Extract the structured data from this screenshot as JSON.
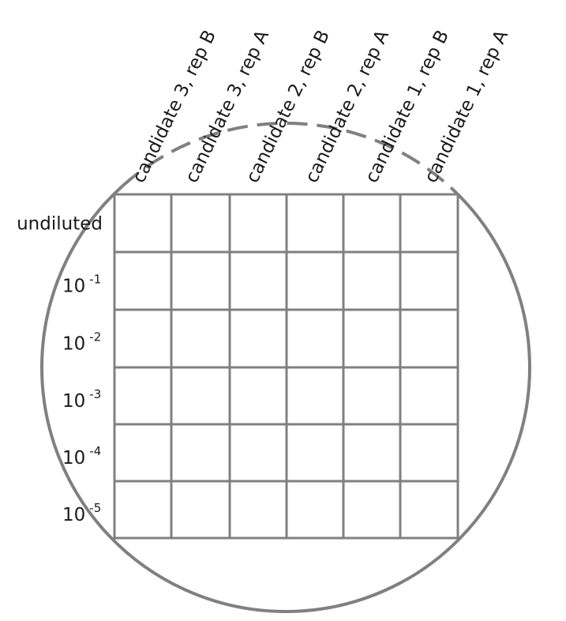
{
  "columns": [
    "candidate 3, rep B",
    "candidate 3, rep A",
    "candidate 2, rep B",
    "candidate 2, rep A",
    "candidate 1, rep B",
    "candidate 1, rep A"
  ],
  "rows": [
    {
      "label": "undiluted",
      "base": "",
      "exp": ""
    },
    {
      "label": "",
      "base": "10",
      "exp": "-1"
    },
    {
      "label": "",
      "base": "10",
      "exp": "-2"
    },
    {
      "label": "",
      "base": "10",
      "exp": "-3"
    },
    {
      "label": "",
      "base": "10",
      "exp": "-4"
    },
    {
      "label": "",
      "base": "10",
      "exp": "-5"
    }
  ],
  "colors": {
    "outline": "#808080",
    "text": "#1a1a1a"
  }
}
